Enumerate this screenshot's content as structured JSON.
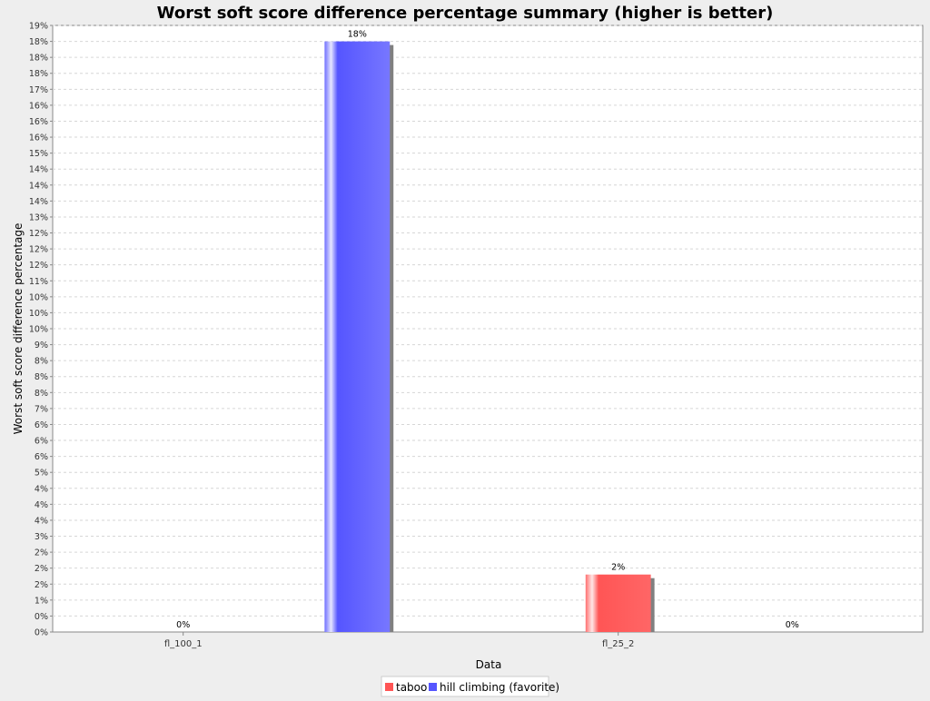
{
  "chart_data": {
    "type": "bar",
    "title": "Worst soft score difference percentage summary (higher is better)",
    "xlabel": "Data",
    "ylabel": "Worst soft score difference percentage",
    "categories": [
      "fl_100_1",
      "fl_25_2"
    ],
    "series": [
      {
        "name": "taboo",
        "color": "#ff5555",
        "values": [
          0,
          1.8
        ],
        "labels": [
          "0%",
          "2%"
        ]
      },
      {
        "name": "hill climbing (favorite)",
        "color": "#5555ff",
        "values": [
          18.5,
          0
        ],
        "labels": [
          "18%",
          "0%"
        ]
      }
    ],
    "ylim": [
      0,
      19
    ],
    "ytick_step": 0.5,
    "ytick_labels": [
      "0%",
      "0%",
      "1%",
      "2%",
      "2%",
      "2%",
      "3%",
      "4%",
      "4%",
      "4%",
      "5%",
      "6%",
      "6%",
      "6%",
      "7%",
      "8%",
      "8%",
      "8%",
      "9%",
      "10%",
      "10%",
      "10%",
      "11%",
      "12%",
      "12%",
      "12%",
      "13%",
      "14%",
      "14%",
      "14%",
      "15%",
      "16%",
      "16%",
      "16%",
      "17%",
      "18%",
      "18%",
      "18%",
      "19%"
    ],
    "grid": true,
    "legend_position": "bottom"
  }
}
